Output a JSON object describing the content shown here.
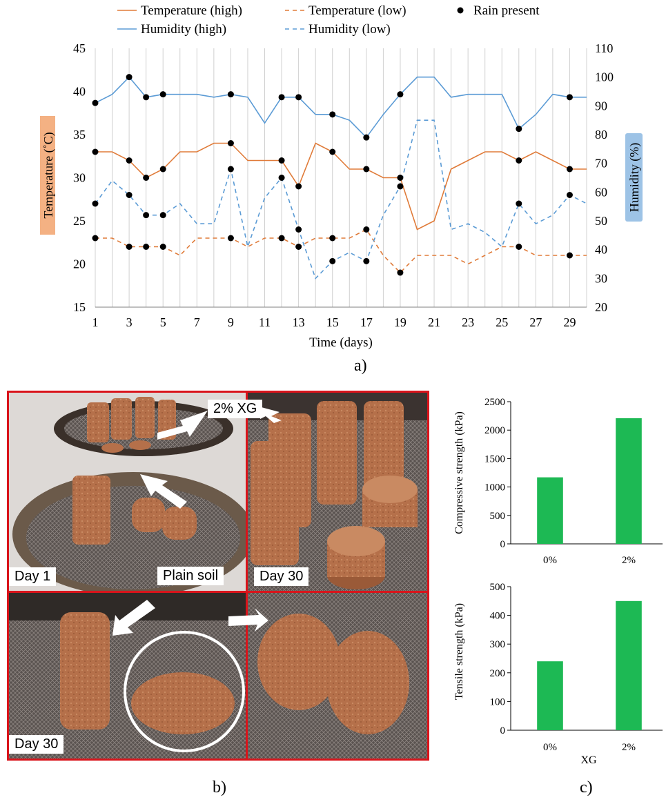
{
  "panel_labels": {
    "a": "a)",
    "b": "b)",
    "c": "c)"
  },
  "photo": {
    "label_xg": "2% XG",
    "label_plain": "Plain soil",
    "label_day1": "Day 1",
    "label_day30_top": "Day 30",
    "label_day30_bottom": "Day 30"
  },
  "colors": {
    "temperature": "#E07B39",
    "humidity": "#5B9BD5",
    "rain": "#000000",
    "bars": "#1DB954",
    "frame": "#D9141B",
    "temp_label_bg": "#F4B183",
    "hum_label_bg": "#9DC3E6"
  },
  "chart_data": [
    {
      "type": "line",
      "xlabel": "Time (days)",
      "ylabel_left": "Temperature (˚C)",
      "ylabel_right": "Humidity (%)",
      "xlim": [
        1,
        30
      ],
      "xticks": [
        1,
        3,
        5,
        7,
        9,
        11,
        13,
        15,
        17,
        19,
        21,
        23,
        25,
        27,
        29
      ],
      "ylim_left": [
        15,
        45
      ],
      "yticks_left": [
        15,
        20,
        25,
        30,
        35,
        40,
        45
      ],
      "ylim_right": [
        20,
        110
      ],
      "yticks_right": [
        20,
        30,
        40,
        50,
        60,
        70,
        80,
        90,
        100,
        110
      ],
      "grid": "vertical",
      "legend_position": "top",
      "x": [
        1,
        2,
        3,
        4,
        5,
        6,
        7,
        8,
        9,
        10,
        11,
        12,
        13,
        14,
        15,
        16,
        17,
        18,
        19,
        20,
        21,
        22,
        23,
        24,
        25,
        26,
        27,
        28,
        29,
        30
      ],
      "series": [
        {
          "name": "Temperature (high)",
          "axis": "left",
          "style": "solid",
          "color": "temperature",
          "values": [
            33,
            33,
            32,
            30,
            31,
            33,
            33,
            34,
            34,
            32,
            32,
            32,
            29,
            34,
            33,
            31,
            31,
            30,
            30,
            24,
            25,
            31,
            32,
            33,
            33,
            32,
            33,
            32,
            31,
            31
          ]
        },
        {
          "name": "Temperature (low)",
          "axis": "left",
          "style": "dashed",
          "color": "temperature",
          "values": [
            23,
            23,
            22,
            22,
            22,
            21,
            23,
            23,
            23,
            22,
            23,
            23,
            22,
            23,
            23,
            23,
            24,
            21,
            19,
            21,
            21,
            21,
            20,
            21,
            22,
            22,
            21,
            21,
            21,
            21
          ]
        },
        {
          "name": "Humidity (high)",
          "axis": "right",
          "style": "solid",
          "color": "humidity",
          "values": [
            91,
            94,
            100,
            93,
            94,
            94,
            94,
            93,
            94,
            93,
            84,
            93,
            93,
            87,
            87,
            85,
            79,
            87,
            94,
            100,
            100,
            93,
            94,
            94,
            94,
            82,
            87,
            94,
            93,
            93
          ]
        },
        {
          "name": "Humidity (low)",
          "axis": "right",
          "style": "dashed",
          "color": "humidity",
          "values": [
            56,
            64,
            59,
            52,
            52,
            56,
            49,
            49,
            68,
            41,
            58,
            65,
            47,
            30,
            36,
            39,
            36,
            52,
            62,
            85,
            85,
            47,
            49,
            46,
            41,
            56,
            49,
            52,
            59,
            56
          ]
        }
      ],
      "rain_present": {
        "name": "Rain present",
        "points": [
          {
            "x": 1,
            "axis": "right",
            "y": 91
          },
          {
            "x": 1,
            "axis": "left",
            "y": 33
          },
          {
            "x": 1,
            "axis": "left",
            "y": 27
          },
          {
            "x": 1,
            "axis": "left",
            "y": 23
          },
          {
            "x": 3,
            "axis": "right",
            "y": 100
          },
          {
            "x": 3,
            "axis": "left",
            "y": 32
          },
          {
            "x": 3,
            "axis": "left",
            "y": 28
          },
          {
            "x": 3,
            "axis": "left",
            "y": 22
          },
          {
            "x": 4,
            "axis": "right",
            "y": 93
          },
          {
            "x": 4,
            "axis": "left",
            "y": 30
          },
          {
            "x": 4,
            "axis": "right",
            "y": 52
          },
          {
            "x": 4,
            "axis": "left",
            "y": 22
          },
          {
            "x": 5,
            "axis": "right",
            "y": 94
          },
          {
            "x": 5,
            "axis": "left",
            "y": 31
          },
          {
            "x": 5,
            "axis": "right",
            "y": 52
          },
          {
            "x": 5,
            "axis": "left",
            "y": 22
          },
          {
            "x": 9,
            "axis": "right",
            "y": 94
          },
          {
            "x": 9,
            "axis": "left",
            "y": 34
          },
          {
            "x": 9,
            "axis": "right",
            "y": 68
          },
          {
            "x": 9,
            "axis": "left",
            "y": 23
          },
          {
            "x": 12,
            "axis": "right",
            "y": 93
          },
          {
            "x": 12,
            "axis": "left",
            "y": 32
          },
          {
            "x": 12,
            "axis": "right",
            "y": 65
          },
          {
            "x": 12,
            "axis": "left",
            "y": 23
          },
          {
            "x": 13,
            "axis": "right",
            "y": 93
          },
          {
            "x": 13,
            "axis": "left",
            "y": 29
          },
          {
            "x": 13,
            "axis": "right",
            "y": 47
          },
          {
            "x": 13,
            "axis": "left",
            "y": 22
          },
          {
            "x": 15,
            "axis": "right",
            "y": 87
          },
          {
            "x": 15,
            "axis": "left",
            "y": 33
          },
          {
            "x": 15,
            "axis": "right",
            "y": 36
          },
          {
            "x": 15,
            "axis": "left",
            "y": 23
          },
          {
            "x": 17,
            "axis": "right",
            "y": 79
          },
          {
            "x": 17,
            "axis": "left",
            "y": 31
          },
          {
            "x": 17,
            "axis": "right",
            "y": 36
          },
          {
            "x": 17,
            "axis": "left",
            "y": 24
          },
          {
            "x": 19,
            "axis": "right",
            "y": 94
          },
          {
            "x": 19,
            "axis": "left",
            "y": 30
          },
          {
            "x": 19,
            "axis": "right",
            "y": 62
          },
          {
            "x": 19,
            "axis": "left",
            "y": 19
          },
          {
            "x": 26,
            "axis": "right",
            "y": 82
          },
          {
            "x": 26,
            "axis": "left",
            "y": 32
          },
          {
            "x": 26,
            "axis": "right",
            "y": 56
          },
          {
            "x": 26,
            "axis": "left",
            "y": 22
          },
          {
            "x": 29,
            "axis": "right",
            "y": 93
          },
          {
            "x": 29,
            "axis": "left",
            "y": 31
          },
          {
            "x": 29,
            "axis": "right",
            "y": 59
          },
          {
            "x": 29,
            "axis": "left",
            "y": 21
          }
        ]
      }
    },
    {
      "type": "bar",
      "categories": [
        "0%",
        "2%"
      ],
      "values": [
        1170,
        2210
      ],
      "ylabel": "Compressive strength (kPa)",
      "xlabel": "",
      "ylim": [
        0,
        2500
      ],
      "yticks": [
        0,
        500,
        1000,
        1500,
        2000,
        2500
      ]
    },
    {
      "type": "bar",
      "categories": [
        "0%",
        "2%"
      ],
      "values": [
        240,
        450
      ],
      "ylabel": "Tensile strength (kPa)",
      "xlabel": "XG",
      "ylim": [
        0,
        500
      ],
      "yticks": [
        0,
        100,
        200,
        300,
        400,
        500
      ]
    }
  ]
}
